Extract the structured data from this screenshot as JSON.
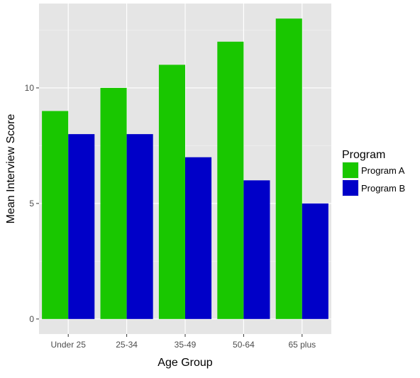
{
  "chart_data": {
    "type": "bar",
    "title": "",
    "xlabel": "Age Group",
    "ylabel": "Mean Interview Score",
    "categories": [
      "Under 25",
      "25-34",
      "35-49",
      "50-64",
      "65 plus"
    ],
    "series": [
      {
        "name": "Program A",
        "color": "#19c700",
        "values": [
          9,
          10,
          11,
          12,
          13
        ]
      },
      {
        "name": "Program B",
        "color": "#0000c8",
        "values": [
          8,
          8,
          7,
          6,
          5
        ]
      }
    ],
    "yticks": [
      0,
      5,
      10
    ],
    "ylim": [
      -0.65,
      13.65
    ],
    "grid": true,
    "background": "#e5e5e5",
    "legend": {
      "title": "Program",
      "position": "right"
    }
  }
}
